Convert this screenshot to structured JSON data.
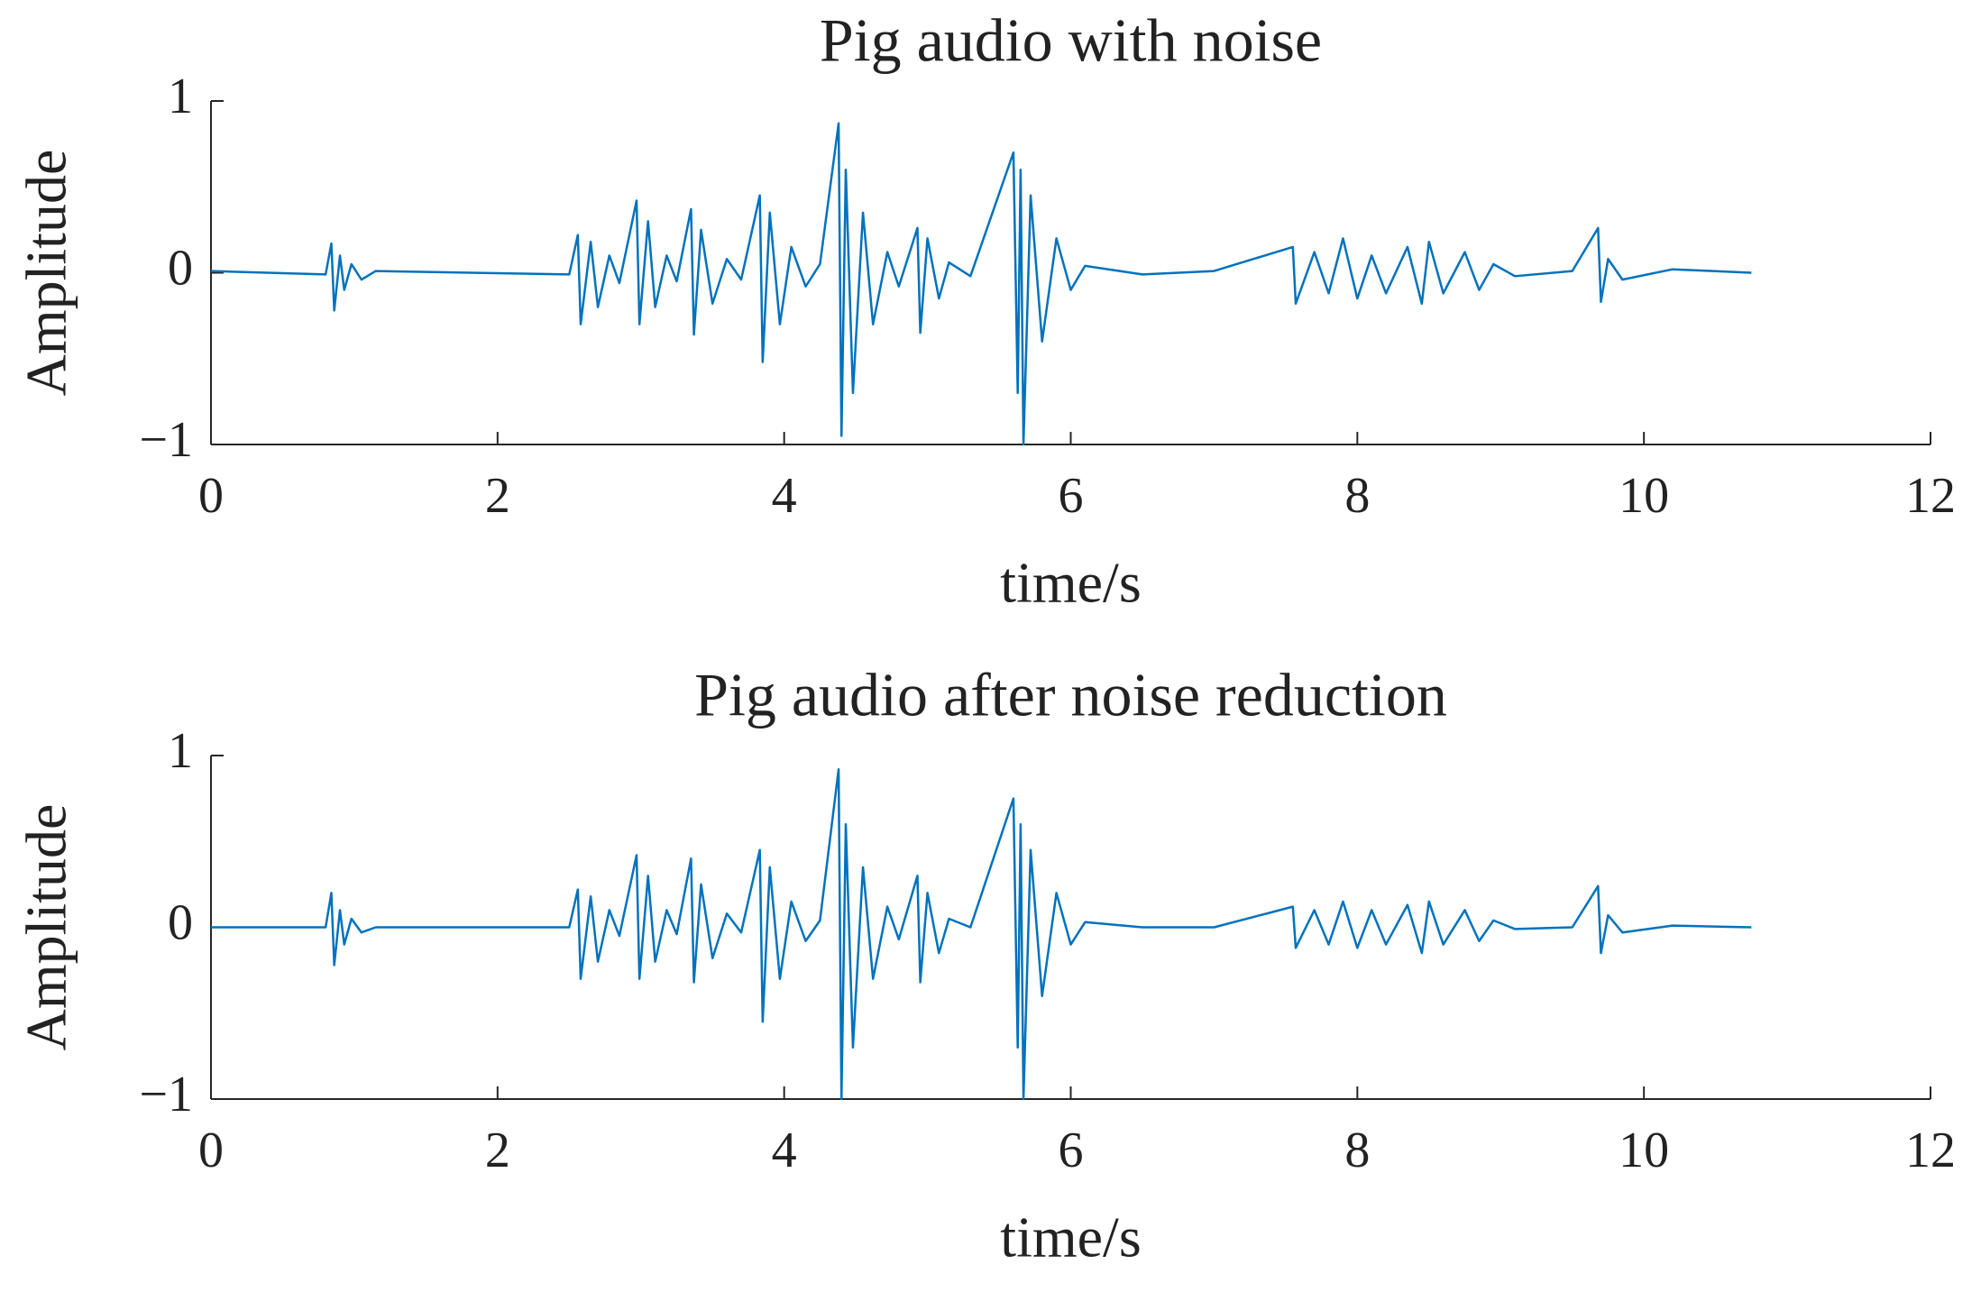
{
  "chart_data": [
    {
      "type": "line",
      "title": "Pig audio with noise",
      "x_label": "time/s",
      "y_label": "Amplitude",
      "xlim": [
        0,
        12
      ],
      "xticks": [
        0,
        2,
        4,
        6,
        8,
        10,
        12
      ],
      "ylim": [
        -1,
        1
      ],
      "yticks": [
        {
          "value": -1,
          "label": "−1"
        },
        0,
        1
      ],
      "series": [
        {
          "color": "#0072bd",
          "x": [
            0,
            0.8,
            0.84,
            0.86,
            0.9,
            0.93,
            0.98,
            1.05,
            1.15,
            2.5,
            2.56,
            2.58,
            2.65,
            2.7,
            2.78,
            2.85,
            2.97,
            2.99,
            3.05,
            3.1,
            3.18,
            3.25,
            3.35,
            3.37,
            3.42,
            3.5,
            3.6,
            3.7,
            3.83,
            3.85,
            3.9,
            3.97,
            4.05,
            4.15,
            4.25,
            4.38,
            4.4,
            4.43,
            4.48,
            4.55,
            4.62,
            4.72,
            4.8,
            4.93,
            4.95,
            5.0,
            5.08,
            5.15,
            5.3,
            5.6,
            5.63,
            5.65,
            5.67,
            5.72,
            5.8,
            5.9,
            6.0,
            6.1,
            6.5,
            7.0,
            7.55,
            7.57,
            7.7,
            7.8,
            7.9,
            8.0,
            8.1,
            8.2,
            8.35,
            8.45,
            8.5,
            8.6,
            8.75,
            8.85,
            8.95,
            9.1,
            9.5,
            9.68,
            9.7,
            9.75,
            9.85,
            10.2,
            10.75
          ],
          "values": [
            0.01,
            -0.01,
            0.17,
            -0.22,
            0.1,
            -0.1,
            0.05,
            -0.04,
            0.01,
            -0.01,
            0.22,
            -0.3,
            0.18,
            -0.2,
            0.1,
            -0.06,
            0.42,
            -0.3,
            0.3,
            -0.2,
            0.1,
            -0.05,
            0.37,
            -0.36,
            0.25,
            -0.18,
            0.08,
            -0.04,
            0.45,
            -0.52,
            0.35,
            -0.3,
            0.15,
            -0.08,
            0.05,
            0.87,
            -0.95,
            0.6,
            -0.7,
            0.35,
            -0.3,
            0.12,
            -0.08,
            0.26,
            -0.35,
            0.2,
            -0.15,
            0.06,
            -0.02,
            0.7,
            -0.7,
            0.6,
            -1.0,
            0.45,
            -0.4,
            0.2,
            -0.1,
            0.04,
            -0.01,
            0.01,
            0.15,
            -0.18,
            0.12,
            -0.12,
            0.2,
            -0.15,
            0.1,
            -0.12,
            0.15,
            -0.18,
            0.18,
            -0.12,
            0.12,
            -0.1,
            0.05,
            -0.02,
            0.01,
            0.26,
            -0.17,
            0.08,
            -0.04,
            0.02,
            0
          ]
        }
      ]
    },
    {
      "type": "line",
      "title": "Pig audio after noise reduction",
      "x_label": "time/s",
      "y_label": "Amplitude",
      "xlim": [
        0,
        12
      ],
      "xticks": [
        0,
        2,
        4,
        6,
        8,
        10,
        12
      ],
      "ylim": [
        -1,
        1
      ],
      "yticks": [
        {
          "value": -1,
          "label": "−1"
        },
        0,
        1
      ],
      "series": [
        {
          "color": "#0072bd",
          "x": [
            0,
            0.8,
            0.84,
            0.86,
            0.9,
            0.93,
            0.98,
            1.05,
            1.15,
            2.5,
            2.56,
            2.58,
            2.65,
            2.7,
            2.78,
            2.85,
            2.97,
            2.99,
            3.05,
            3.1,
            3.18,
            3.25,
            3.35,
            3.37,
            3.42,
            3.5,
            3.6,
            3.7,
            3.83,
            3.85,
            3.9,
            3.97,
            4.05,
            4.15,
            4.25,
            4.38,
            4.4,
            4.43,
            4.48,
            4.55,
            4.62,
            4.72,
            4.8,
            4.93,
            4.95,
            5.0,
            5.08,
            5.15,
            5.3,
            5.6,
            5.63,
            5.65,
            5.67,
            5.72,
            5.8,
            5.9,
            6.0,
            6.1,
            6.5,
            7.0,
            7.55,
            7.57,
            7.7,
            7.8,
            7.9,
            8.0,
            8.1,
            8.2,
            8.35,
            8.45,
            8.5,
            8.6,
            8.75,
            8.85,
            8.95,
            9.1,
            9.5,
            9.68,
            9.7,
            9.75,
            9.85,
            10.2,
            10.75
          ],
          "values": [
            0,
            0,
            0.2,
            -0.22,
            0.1,
            -0.1,
            0.05,
            -0.03,
            0,
            0,
            0.22,
            -0.3,
            0.18,
            -0.2,
            0.1,
            -0.05,
            0.42,
            -0.3,
            0.3,
            -0.2,
            0.1,
            -0.04,
            0.4,
            -0.32,
            0.25,
            -0.18,
            0.08,
            -0.03,
            0.45,
            -0.55,
            0.35,
            -0.3,
            0.15,
            -0.08,
            0.04,
            0.92,
            -1.0,
            0.6,
            -0.7,
            0.35,
            -0.3,
            0.12,
            -0.07,
            0.3,
            -0.32,
            0.2,
            -0.15,
            0.05,
            0,
            0.75,
            -0.7,
            0.6,
            -1.0,
            0.45,
            -0.4,
            0.2,
            -0.1,
            0.03,
            0,
            0,
            0.12,
            -0.12,
            0.1,
            -0.1,
            0.15,
            -0.12,
            0.1,
            -0.1,
            0.13,
            -0.15,
            0.15,
            -0.1,
            0.1,
            -0.08,
            0.04,
            -0.01,
            0,
            0.24,
            -0.15,
            0.07,
            -0.03,
            0.01,
            0
          ]
        }
      ]
    }
  ]
}
